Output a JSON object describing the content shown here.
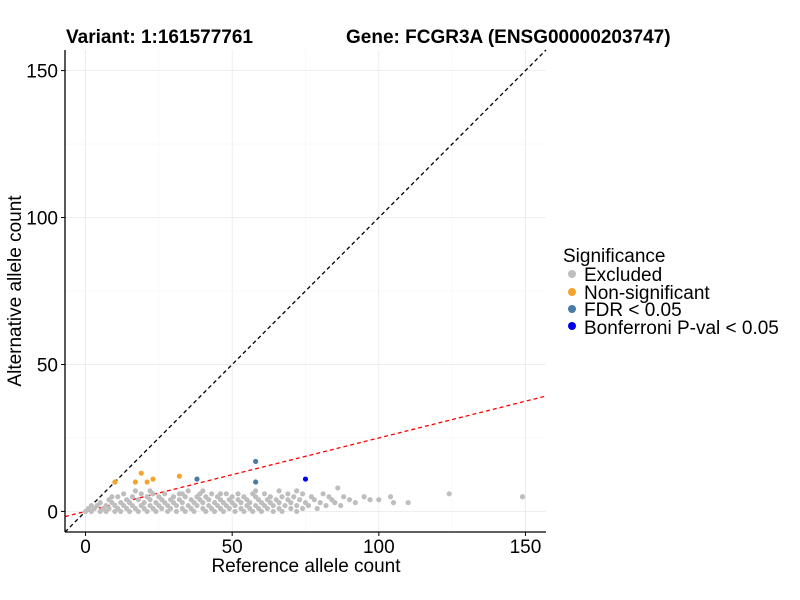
{
  "titles": {
    "variant": "Variant: 1:161577761",
    "gene": "Gene: FCGR3A (ENSG00000203747)"
  },
  "legend": {
    "title": "Significance",
    "position": "right",
    "items": [
      {
        "label": "Excluded",
        "color": "#bebebe"
      },
      {
        "label": "Non-significant",
        "color": "#f4a42c"
      },
      {
        "label": "FDR < 0.05",
        "color": "#4a7aa6"
      },
      {
        "label": "Bonferroni P-val < 0.05",
        "color": "#0000ee"
      }
    ]
  },
  "chart_data": {
    "type": "scatter",
    "xlabel": "Reference allele count",
    "ylabel": "Alternative allele count",
    "xlim": [
      -7,
      157
    ],
    "ylim": [
      -7,
      157
    ],
    "xticks": [
      0,
      50,
      100,
      150
    ],
    "yticks": [
      0,
      50,
      100,
      150
    ],
    "grid": true,
    "reference_lines": [
      {
        "style": "dashed",
        "color": "#000000",
        "slope": 1,
        "intercept": 0
      },
      {
        "style": "dashed",
        "color": "#ff0000",
        "slope": 0.25,
        "intercept": 0
      }
    ],
    "series": [
      {
        "name": "Excluded",
        "color": "#bebebe",
        "points": [
          [
            0,
            0
          ],
          [
            1,
            1
          ],
          [
            2,
            0
          ],
          [
            3,
            1
          ],
          [
            4,
            2
          ],
          [
            5,
            0
          ],
          [
            5,
            3
          ],
          [
            6,
            1
          ],
          [
            7,
            2
          ],
          [
            7,
            0
          ],
          [
            8,
            1
          ],
          [
            8,
            4
          ],
          [
            9,
            3
          ],
          [
            10,
            0
          ],
          [
            10,
            2
          ],
          [
            11,
            5
          ],
          [
            11,
            1
          ],
          [
            12,
            3
          ],
          [
            12,
            0
          ],
          [
            13,
            2
          ],
          [
            13,
            6
          ],
          [
            14,
            1
          ],
          [
            14,
            4
          ],
          [
            15,
            0
          ],
          [
            15,
            3
          ],
          [
            16,
            5
          ],
          [
            16,
            2
          ],
          [
            17,
            1
          ],
          [
            17,
            7
          ],
          [
            18,
            4
          ],
          [
            18,
            0
          ],
          [
            19,
            2
          ],
          [
            19,
            6
          ],
          [
            20,
            1
          ],
          [
            20,
            3
          ],
          [
            21,
            5
          ],
          [
            21,
            0
          ],
          [
            22,
            2
          ],
          [
            22,
            4
          ],
          [
            23,
            6
          ],
          [
            23,
            1
          ],
          [
            24,
            3
          ],
          [
            24,
            0
          ],
          [
            25,
            5
          ],
          [
            25,
            2
          ],
          [
            26,
            4
          ],
          [
            26,
            1
          ],
          [
            27,
            3
          ],
          [
            27,
            6
          ],
          [
            28,
            0
          ],
          [
            28,
            2
          ],
          [
            29,
            4
          ],
          [
            29,
            1
          ],
          [
            30,
            5
          ],
          [
            30,
            3
          ],
          [
            31,
            0
          ],
          [
            31,
            2
          ],
          [
            32,
            6
          ],
          [
            32,
            4
          ],
          [
            33,
            1
          ],
          [
            33,
            3
          ],
          [
            34,
            5
          ],
          [
            34,
            0
          ],
          [
            35,
            2
          ],
          [
            35,
            7
          ],
          [
            36,
            4
          ],
          [
            36,
            1
          ],
          [
            37,
            3
          ],
          [
            37,
            0
          ],
          [
            38,
            5
          ],
          [
            38,
            2
          ],
          [
            39,
            4
          ],
          [
            39,
            6
          ],
          [
            40,
            1
          ],
          [
            40,
            3
          ],
          [
            41,
            0
          ],
          [
            41,
            5
          ],
          [
            42,
            2
          ],
          [
            42,
            4
          ],
          [
            43,
            1
          ],
          [
            43,
            6
          ],
          [
            44,
            3
          ],
          [
            44,
            0
          ],
          [
            45,
            5
          ],
          [
            45,
            2
          ],
          [
            46,
            4
          ],
          [
            46,
            1
          ],
          [
            47,
            3
          ],
          [
            47,
            0
          ],
          [
            48,
            6
          ],
          [
            48,
            2
          ],
          [
            49,
            4
          ],
          [
            49,
            1
          ],
          [
            50,
            3
          ],
          [
            50,
            5
          ],
          [
            51,
            0
          ],
          [
            51,
            2
          ],
          [
            52,
            4
          ],
          [
            52,
            6
          ],
          [
            53,
            1
          ],
          [
            53,
            3
          ],
          [
            54,
            5
          ],
          [
            54,
            0
          ],
          [
            55,
            2
          ],
          [
            55,
            4
          ],
          [
            56,
            1
          ],
          [
            56,
            3
          ],
          [
            57,
            6
          ],
          [
            57,
            0
          ],
          [
            58,
            2
          ],
          [
            58,
            5
          ],
          [
            59,
            4
          ],
          [
            59,
            1
          ],
          [
            60,
            3
          ],
          [
            60,
            0
          ],
          [
            61,
            2
          ],
          [
            61,
            6
          ],
          [
            62,
            4
          ],
          [
            62,
            1
          ],
          [
            63,
            3
          ],
          [
            63,
            5
          ],
          [
            64,
            0
          ],
          [
            64,
            2
          ],
          [
            65,
            4
          ],
          [
            66,
            1
          ],
          [
            66,
            3
          ],
          [
            67,
            5
          ],
          [
            67,
            0
          ],
          [
            68,
            2
          ],
          [
            69,
            4
          ],
          [
            69,
            6
          ],
          [
            70,
            1
          ],
          [
            70,
            3
          ],
          [
            71,
            5
          ],
          [
            72,
            2
          ],
          [
            72,
            0
          ],
          [
            73,
            4
          ],
          [
            74,
            1
          ],
          [
            74,
            6
          ],
          [
            75,
            3
          ],
          [
            76,
            2
          ],
          [
            77,
            5
          ],
          [
            78,
            4
          ],
          [
            79,
            1
          ],
          [
            80,
            3
          ],
          [
            81,
            6
          ],
          [
            82,
            2
          ],
          [
            83,
            5
          ],
          [
            84,
            4
          ],
          [
            85,
            3
          ],
          [
            86,
            8
          ],
          [
            87,
            2
          ],
          [
            88,
            5
          ],
          [
            90,
            4
          ],
          [
            92,
            3
          ],
          [
            95,
            5
          ],
          [
            97,
            4
          ],
          [
            100,
            4
          ],
          [
            104,
            5
          ],
          [
            105,
            3
          ],
          [
            110,
            3
          ],
          [
            124,
            6
          ],
          [
            149,
            5
          ],
          [
            40,
            7
          ],
          [
            72,
            7
          ],
          [
            66,
            7
          ],
          [
            9,
            5
          ],
          [
            2,
            2
          ],
          [
            33,
            6
          ],
          [
            46,
            6
          ],
          [
            58,
            7
          ],
          [
            22,
            7
          ]
        ]
      },
      {
        "name": "Non-significant",
        "color": "#f4a42c",
        "points": [
          [
            10,
            10
          ],
          [
            17,
            10
          ],
          [
            19,
            13
          ],
          [
            21,
            10
          ],
          [
            23,
            11
          ],
          [
            32,
            12
          ]
        ]
      },
      {
        "name": "FDR < 0.05",
        "color": "#4a7aa6",
        "points": [
          [
            38,
            11
          ],
          [
            58,
            17
          ],
          [
            58,
            10
          ]
        ]
      },
      {
        "name": "Bonferroni P-val < 0.05",
        "color": "#0000ee",
        "points": [
          [
            75,
            11
          ]
        ]
      }
    ]
  }
}
